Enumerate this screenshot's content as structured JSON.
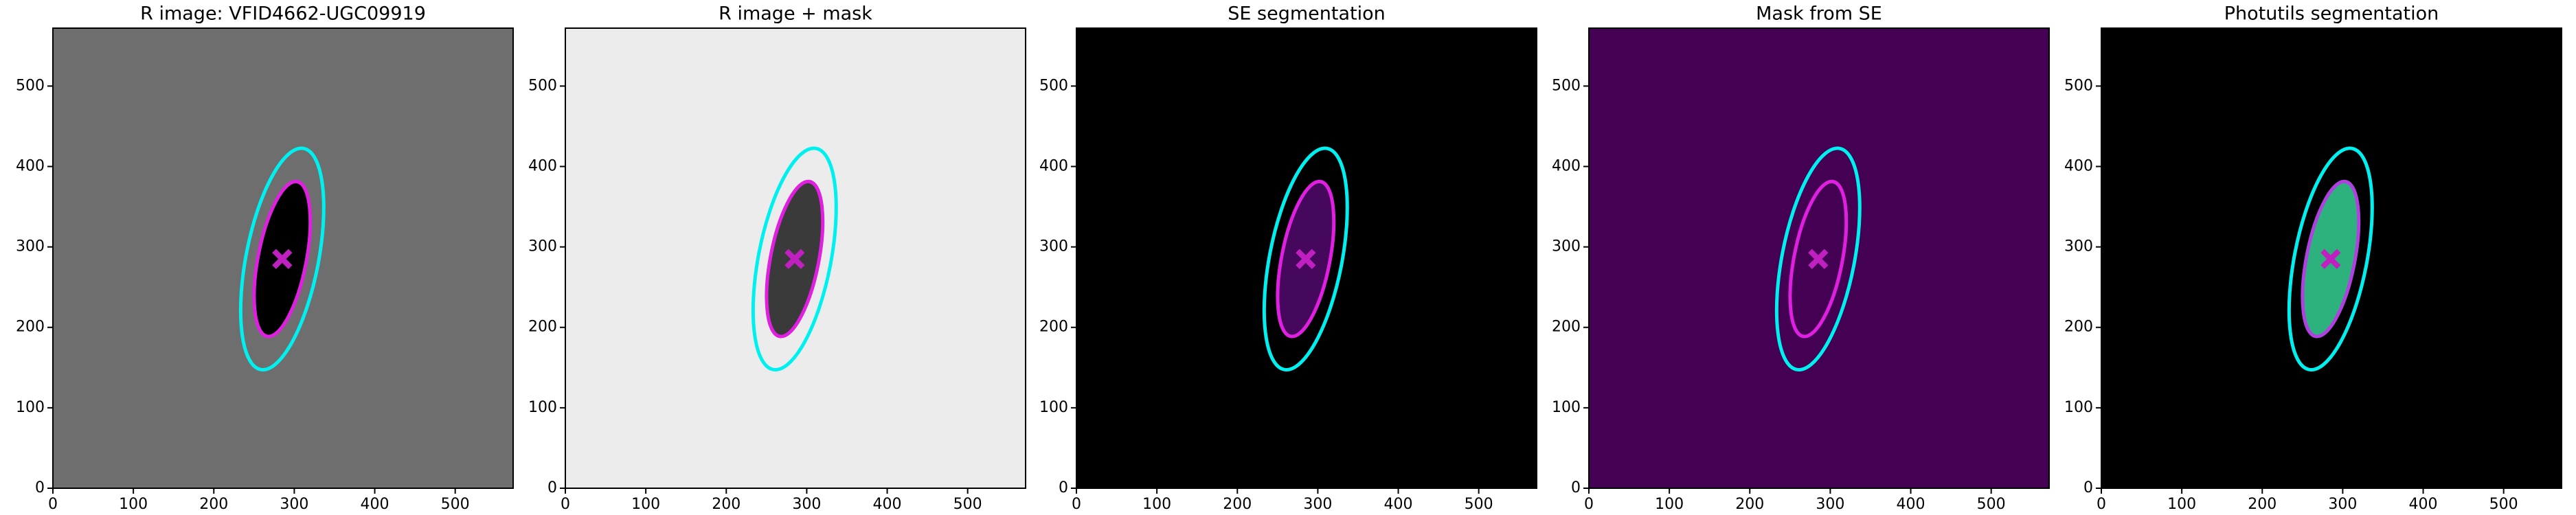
{
  "chart_data": [
    {
      "type": "image",
      "title": "R image: VFID4662-UGC09919",
      "background": "#6e6e6e",
      "source_color": "#000000",
      "xlim": [
        0,
        572
      ],
      "ylim": [
        0,
        572
      ],
      "xticks": [
        0,
        100,
        200,
        300,
        400,
        500
      ],
      "yticks": [
        0,
        100,
        200,
        300,
        400,
        500
      ],
      "ellipses": [
        {
          "color": "#00f0f0",
          "center": [
            285,
            285
          ],
          "semi_major": 140,
          "semi_minor": 45,
          "angle": 79
        },
        {
          "color": "#e020e0",
          "center": [
            285,
            285
          ],
          "semi_major": 98,
          "semi_minor": 30,
          "angle": 79
        }
      ],
      "marker": {
        "x": 285,
        "y": 285,
        "color": "#c020c0"
      }
    },
    {
      "type": "image",
      "title": "R image + mask",
      "background": "#ececec",
      "source_color": "#3a3a3a",
      "xlim": [
        0,
        572
      ],
      "ylim": [
        0,
        572
      ],
      "xticks": [
        0,
        100,
        200,
        300,
        400,
        500
      ],
      "yticks": [
        0,
        100,
        200,
        300,
        400,
        500
      ],
      "ellipses": [
        {
          "color": "#00f0f0",
          "center": [
            285,
            285
          ],
          "semi_major": 140,
          "semi_minor": 45,
          "angle": 79
        },
        {
          "color": "#e020e0",
          "center": [
            285,
            285
          ],
          "semi_major": 98,
          "semi_minor": 30,
          "angle": 79
        }
      ],
      "marker": {
        "x": 285,
        "y": 285,
        "color": "#c020c0"
      }
    },
    {
      "type": "image",
      "title": "SE segmentation",
      "background": "#000000",
      "source_color": "#46085c",
      "xlim": [
        0,
        572
      ],
      "ylim": [
        0,
        572
      ],
      "xticks": [
        0,
        100,
        200,
        300,
        400,
        500
      ],
      "yticks": [
        0,
        100,
        200,
        300,
        400,
        500
      ],
      "ellipses": [
        {
          "color": "#00f0f0",
          "center": [
            285,
            285
          ],
          "semi_major": 140,
          "semi_minor": 45,
          "angle": 79
        },
        {
          "color": "#e020e0",
          "center": [
            285,
            285
          ],
          "semi_major": 98,
          "semi_minor": 30,
          "angle": 79
        }
      ],
      "marker": {
        "x": 285,
        "y": 285,
        "color": "#c020c0"
      }
    },
    {
      "type": "image",
      "title": "Mask from SE",
      "background": "#440154",
      "source_color": "#440154",
      "xlim": [
        0,
        572
      ],
      "ylim": [
        0,
        572
      ],
      "xticks": [
        0,
        100,
        200,
        300,
        400,
        500
      ],
      "yticks": [
        0,
        100,
        200,
        300,
        400,
        500
      ],
      "ellipses": [
        {
          "color": "#00f0f0",
          "center": [
            285,
            285
          ],
          "semi_major": 140,
          "semi_minor": 45,
          "angle": 79
        },
        {
          "color": "#e020e0",
          "center": [
            285,
            285
          ],
          "semi_major": 98,
          "semi_minor": 30,
          "angle": 79
        }
      ],
      "marker": {
        "x": 285,
        "y": 285,
        "color": "#c020c0"
      }
    },
    {
      "type": "image",
      "title": "Photutils segmentation",
      "background": "#000000",
      "source_color": "#2db27d",
      "xlim": [
        0,
        572
      ],
      "ylim": [
        0,
        572
      ],
      "xticks": [
        0,
        100,
        200,
        300,
        400,
        500
      ],
      "yticks": [
        0,
        100,
        200,
        300,
        400,
        500
      ],
      "ellipses": [
        {
          "color": "#00f0f0",
          "center": [
            285,
            285
          ],
          "semi_major": 140,
          "semi_minor": 45,
          "angle": 79
        },
        {
          "color": "#b040e0",
          "center": [
            285,
            285
          ],
          "semi_major": 98,
          "semi_minor": 30,
          "angle": 79
        }
      ],
      "marker": {
        "x": 285,
        "y": 285,
        "color": "#c020c0"
      }
    }
  ]
}
